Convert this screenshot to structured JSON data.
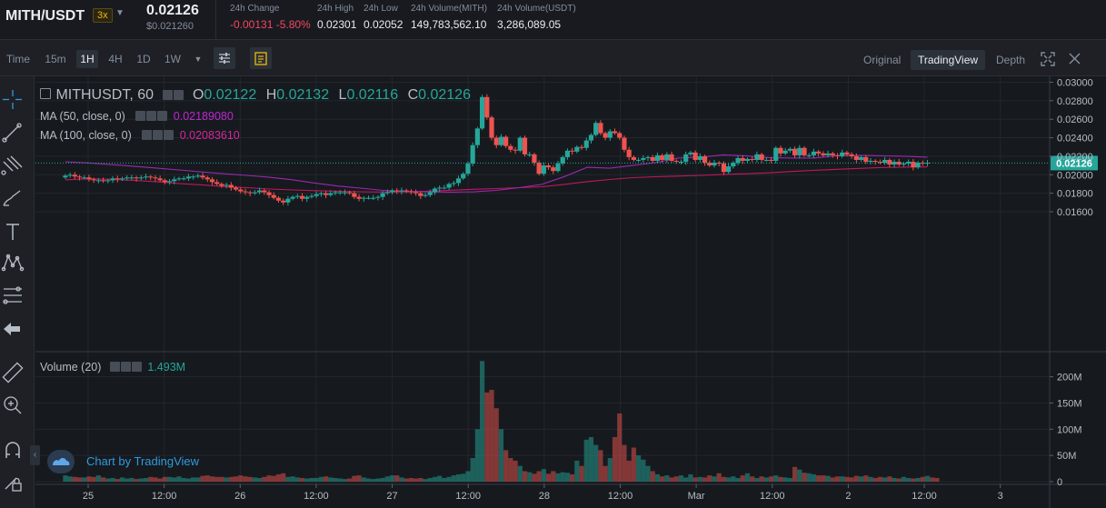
{
  "header": {
    "pair": "MITH/USDT",
    "leverage": "3x",
    "last_price": "0.02126",
    "last_price_usd": "$0.021260",
    "stats": [
      {
        "label": "24h Change",
        "value": "-0.00131 -5.80%"
      },
      {
        "label": "24h High",
        "value": "0.02301"
      },
      {
        "label": "24h Low",
        "value": "0.02052"
      },
      {
        "label": "24h Volume(MITH)",
        "value": "149,783,562.10"
      },
      {
        "label": "24h Volume(USDT)",
        "value": "3,286,089.05"
      }
    ]
  },
  "toolbar": {
    "time_label": "Time",
    "intervals": [
      "15m",
      "1H",
      "4H",
      "1D",
      "1W"
    ],
    "active_interval": "1H",
    "views": [
      "Original",
      "TradingView",
      "Depth"
    ],
    "active_view": "TradingView"
  },
  "legend": {
    "symbol": "MITHUSDT, 60",
    "ohlc": {
      "o_label": "O",
      "o": "0.02122",
      "h_label": "H",
      "h": "0.02132",
      "l_label": "L",
      "l": "0.02116",
      "c_label": "C",
      "c": "0.02126"
    },
    "ma50_label": "MA (50, close, 0)",
    "ma50_value": "0.02189080",
    "ma100_label": "MA (100, close, 0)",
    "ma100_value": "0.02083610",
    "volume_label": "Volume (20)",
    "volume_value": "1.493M",
    "badge": "Chart by TradingView"
  },
  "colors": {
    "up": "#26a69a",
    "down": "#ef5350",
    "ma50": "#9c27b0",
    "ma100": "#c2185b",
    "price_line": "#26a69a",
    "brand": "#f0b90b"
  },
  "chart_data": {
    "type": "candlestick",
    "price_axis": [
      "0.03000",
      "0.02800",
      "0.02600",
      "0.02400",
      "0.02200",
      "0.02000",
      "0.01800",
      "0.01600"
    ],
    "price_values": [
      0.03,
      0.028,
      0.026,
      0.024,
      0.022,
      0.02,
      0.018,
      0.016
    ],
    "current_price_label": "0.02126",
    "current_price": 0.02126,
    "volume_axis": [
      "200M",
      "150M",
      "100M",
      "50M",
      "0"
    ],
    "volume_values": [
      200,
      150,
      100,
      50,
      0
    ],
    "x_ticks": [
      "25",
      "12:00",
      "26",
      "12:00",
      "27",
      "12:00",
      "28",
      "12:00",
      "Mar",
      "12:00",
      "2",
      "12:00",
      "3"
    ],
    "x_tick_hours": [
      0,
      12,
      24,
      36,
      48,
      60,
      72,
      84,
      96,
      108,
      120,
      132,
      144
    ],
    "first_candle_hour": -3.6,
    "last_candle_hour": 132.5,
    "close": [
      0.0199,
      0.02,
      0.0198,
      0.0197,
      0.0197,
      0.0195,
      0.0194,
      0.0194,
      0.0193,
      0.0194,
      0.0196,
      0.0195,
      0.0196,
      0.0197,
      0.0197,
      0.0196,
      0.0197,
      0.0198,
      0.0197,
      0.0196,
      0.0194,
      0.0192,
      0.0193,
      0.0195,
      0.0196,
      0.0196,
      0.0198,
      0.0198,
      0.0199,
      0.0197,
      0.0195,
      0.0192,
      0.019,
      0.0188,
      0.0189,
      0.0186,
      0.0184,
      0.0182,
      0.0181,
      0.018,
      0.0181,
      0.0183,
      0.0181,
      0.0178,
      0.0175,
      0.0172,
      0.017,
      0.0174,
      0.0176,
      0.0177,
      0.0174,
      0.0176,
      0.0177,
      0.0179,
      0.018,
      0.0178,
      0.018,
      0.0181,
      0.0181,
      0.0181,
      0.018,
      0.0176,
      0.0174,
      0.0175,
      0.0175,
      0.0175,
      0.0176,
      0.018,
      0.0181,
      0.0183,
      0.0182,
      0.0183,
      0.0182,
      0.0181,
      0.018,
      0.0177,
      0.0178,
      0.0181,
      0.0185,
      0.0186,
      0.0186,
      0.019,
      0.0191,
      0.0196,
      0.0201,
      0.0212,
      0.0232,
      0.025,
      0.0284,
      0.0262,
      0.024,
      0.0232,
      0.0241,
      0.0231,
      0.0227,
      0.0226,
      0.024,
      0.0222,
      0.0222,
      0.0213,
      0.0201,
      0.021,
      0.0208,
      0.0204,
      0.0212,
      0.0219,
      0.0226,
      0.0225,
      0.023,
      0.0229,
      0.0237,
      0.0243,
      0.0256,
      0.0245,
      0.024,
      0.0247,
      0.0245,
      0.024,
      0.0227,
      0.0219,
      0.0216,
      0.0216,
      0.0218,
      0.0219,
      0.0215,
      0.0221,
      0.0216,
      0.0222,
      0.0215,
      0.0214,
      0.0214,
      0.0222,
      0.0224,
      0.0216,
      0.022,
      0.0213,
      0.021,
      0.0213,
      0.0212,
      0.0203,
      0.0209,
      0.0213,
      0.0218,
      0.0215,
      0.0217,
      0.0216,
      0.0222,
      0.0216,
      0.0216,
      0.0215,
      0.0229,
      0.0223,
      0.0226,
      0.0228,
      0.0221,
      0.0229,
      0.0221,
      0.0221,
      0.0225,
      0.0223,
      0.0221,
      0.0223,
      0.0221,
      0.022,
      0.0224,
      0.0222,
      0.022,
      0.0216,
      0.0219,
      0.0214,
      0.0215,
      0.0214,
      0.0213,
      0.0216,
      0.0211,
      0.0214,
      0.0211,
      0.0212,
      0.0214,
      0.0208,
      0.0213,
      0.0212,
      0.0213
    ],
    "volume_m": [
      12,
      10,
      9,
      8,
      8,
      10,
      9,
      12,
      8,
      6,
      7,
      5,
      8,
      6,
      7,
      5,
      6,
      7,
      9,
      8,
      6,
      9,
      9,
      8,
      10,
      7,
      6,
      8,
      8,
      11,
      12,
      10,
      9,
      9,
      8,
      9,
      10,
      12,
      10,
      9,
      8,
      7,
      9,
      12,
      11,
      14,
      16,
      9,
      10,
      8,
      7,
      6,
      7,
      7,
      9,
      10,
      8,
      7,
      6,
      5,
      6,
      11,
      12,
      8,
      6,
      5,
      6,
      7,
      10,
      12,
      12,
      8,
      6,
      7,
      6,
      7,
      5,
      7,
      9,
      11,
      7,
      9,
      12,
      14,
      15,
      20,
      45,
      100,
      230,
      170,
      175,
      140,
      100,
      60,
      45,
      40,
      30,
      20,
      18,
      15,
      20,
      24,
      15,
      20,
      16,
      18,
      17,
      14,
      40,
      30,
      80,
      85,
      70,
      60,
      30,
      45,
      85,
      130,
      70,
      40,
      65,
      50,
      42,
      30,
      20,
      14,
      10,
      12,
      8,
      10,
      12,
      8,
      14,
      8,
      9,
      8,
      12,
      10,
      16,
      9,
      8,
      10,
      7,
      12,
      16,
      10,
      7,
      10,
      8,
      10,
      12,
      9,
      8,
      7,
      28,
      23,
      17,
      16,
      14,
      12,
      12,
      11,
      8,
      10,
      10,
      9,
      8,
      11,
      10,
      12,
      9,
      7,
      9,
      8,
      10,
      7,
      6,
      9,
      7,
      6,
      7,
      9,
      11,
      8,
      7
    ],
    "ma50": [
      0.0214,
      0.02127,
      0.0211,
      0.02092,
      0.02072,
      0.02052,
      0.0203,
      0.0201,
      0.01993,
      0.01972,
      0.01945,
      0.0191,
      0.01878,
      0.01855,
      0.0183,
      0.0182,
      0.01815,
      0.01812,
      0.01815,
      0.0183,
      0.0186,
      0.01895,
      0.0198,
      0.0208,
      0.0207,
      0.021,
      0.0213,
      0.0218,
      0.0219,
      0.02215,
      0.02205,
      0.02185,
      0.0218,
      0.0218,
      0.02205,
      0.0221,
      0.02205,
      0.022,
      0.02189
    ],
    "ma100": [
      0.01945,
      0.01955,
      0.0195,
      0.0194,
      0.01925,
      0.01905,
      0.0189,
      0.01872,
      0.0186,
      0.01845,
      0.01835,
      0.01828,
      0.01822,
      0.01816,
      0.01813,
      0.01815,
      0.01822,
      0.01832,
      0.01842,
      0.0185,
      0.0186,
      0.0187,
      0.01895,
      0.01925,
      0.01948,
      0.01968,
      0.01978,
      0.01985,
      0.01993,
      0.02003,
      0.0201,
      0.0202,
      0.02035,
      0.02048,
      0.02058,
      0.02068,
      0.02078,
      0.02082,
      0.02084
    ]
  }
}
